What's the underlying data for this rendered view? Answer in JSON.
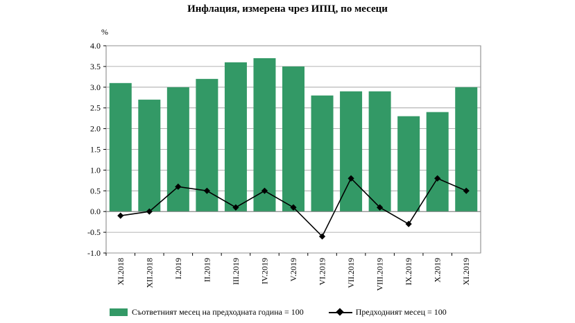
{
  "title": "Инфлация, измерена чрез ИПЦ, по месеци",
  "unit": "%",
  "legend": {
    "bars_label": "Съответният месец на предходната година = 100",
    "line_label": "Предходният месец = 100"
  },
  "colors": {
    "bars": "#339966",
    "line": "#000000",
    "grid": "#999999"
  },
  "chart_data": {
    "type": "bar",
    "categories": [
      "XI.2018",
      "XII.2018",
      "I.2019",
      "II.2019",
      "III.2019",
      "IV.2019",
      "V.2019",
      "VI.2019",
      "VII.2019",
      "VIII.2019",
      "IX.2019",
      "X.2019",
      "XI.2019"
    ],
    "series": [
      {
        "name": "Съответният месец на предходната година = 100",
        "type": "bar",
        "values": [
          3.1,
          2.7,
          3.0,
          3.2,
          3.6,
          3.7,
          3.5,
          2.8,
          2.9,
          2.9,
          2.3,
          2.4,
          3.0
        ]
      },
      {
        "name": "Предходният месец = 100",
        "type": "line",
        "values": [
          -0.1,
          0.0,
          0.6,
          0.5,
          0.1,
          0.5,
          0.1,
          -0.6,
          0.8,
          0.1,
          -0.3,
          0.8,
          0.5
        ]
      }
    ],
    "ylim": [
      -1.0,
      4.0
    ],
    "yticks": [
      "4.0",
      "3.5",
      "3.0",
      "2.5",
      "2.0",
      "1.5",
      "1.0",
      "0.5",
      "0.0",
      "-0.5",
      "-1.0"
    ],
    "grid": true,
    "legend_position": "bottom"
  }
}
